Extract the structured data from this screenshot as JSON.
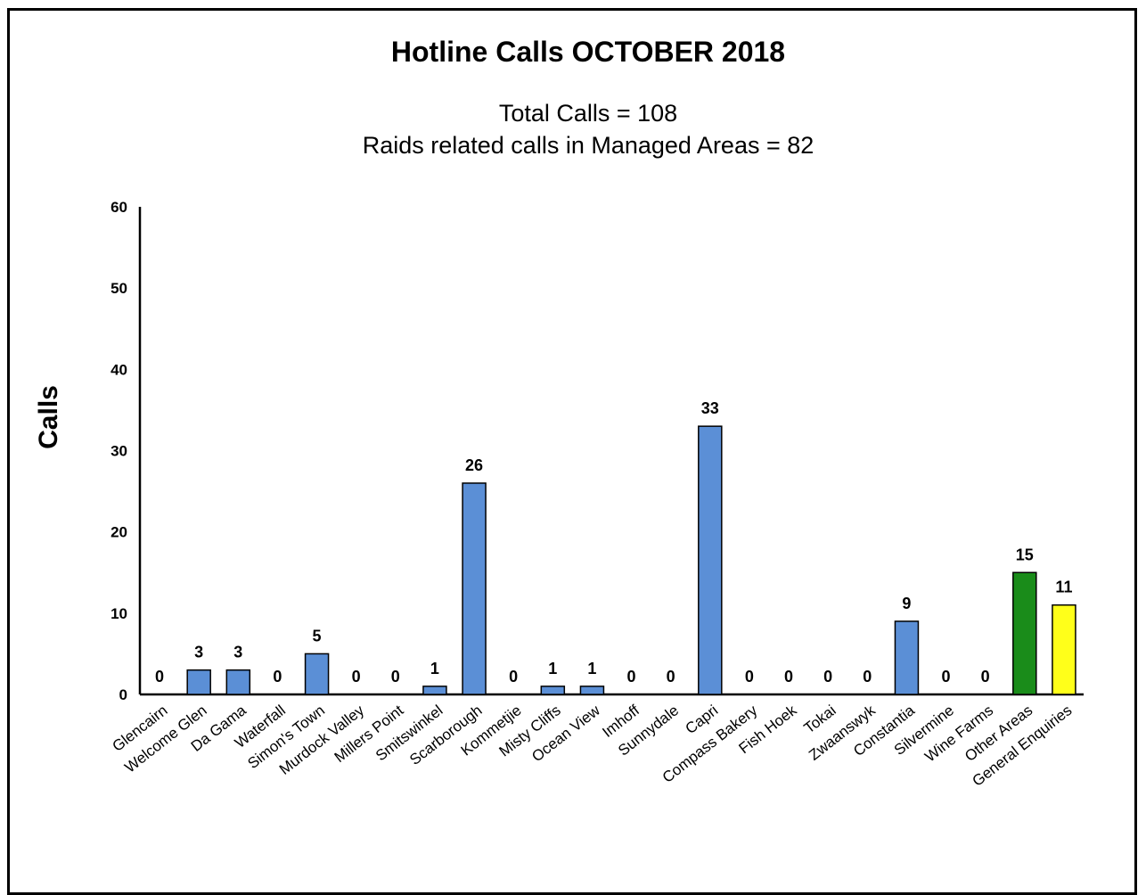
{
  "chart_data": {
    "type": "bar",
    "title": "Hotline Calls OCTOBER 2018",
    "subtitle_lines": [
      "Total Calls = 108",
      "Raids related calls in Managed Areas = 82"
    ],
    "xlabel": "",
    "ylabel": "Calls",
    "ylim": [
      0,
      60
    ],
    "yticks": [
      0,
      10,
      20,
      30,
      40,
      50,
      60
    ],
    "grid": false,
    "legend": "none",
    "categories": [
      "Glencairn",
      "Welcome Glen",
      "Da Gama",
      "Waterfall",
      "Simon's Town",
      "Murdock Valley",
      "Millers Point",
      "Smitswinkel",
      "Scarborough",
      "Kommetjie",
      "Misty Cliffs",
      "Ocean View",
      "Imhoff",
      "Sunnydale",
      "Capri",
      "Compass Bakery",
      "Fish Hoek",
      "Tokai",
      "Zwaanswyk",
      "Constantia",
      "Silvermine",
      "Wine Farms",
      "Other Areas",
      "General Enquiries"
    ],
    "values": [
      0,
      3,
      3,
      0,
      5,
      0,
      0,
      1,
      26,
      0,
      1,
      1,
      0,
      0,
      33,
      0,
      0,
      0,
      0,
      9,
      0,
      0,
      15,
      11
    ],
    "bar_colors": [
      "#5b8fd6",
      "#5b8fd6",
      "#5b8fd6",
      "#5b8fd6",
      "#5b8fd6",
      "#5b8fd6",
      "#5b8fd6",
      "#5b8fd6",
      "#5b8fd6",
      "#5b8fd6",
      "#5b8fd6",
      "#5b8fd6",
      "#5b8fd6",
      "#5b8fd6",
      "#5b8fd6",
      "#5b8fd6",
      "#5b8fd6",
      "#5b8fd6",
      "#5b8fd6",
      "#5b8fd6",
      "#5b8fd6",
      "#5b8fd6",
      "#1a8c1a",
      "#ffff1a"
    ]
  }
}
